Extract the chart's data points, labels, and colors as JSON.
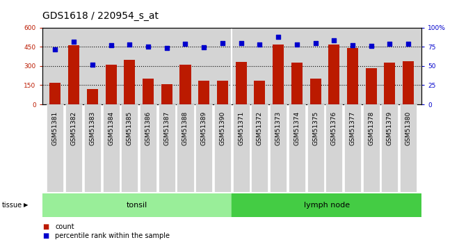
{
  "title": "GDS1618 / 220954_s_at",
  "samples": [
    "GSM51381",
    "GSM51382",
    "GSM51383",
    "GSM51384",
    "GSM51385",
    "GSM51386",
    "GSM51387",
    "GSM51388",
    "GSM51389",
    "GSM51390",
    "GSM51371",
    "GSM51372",
    "GSM51373",
    "GSM51374",
    "GSM51375",
    "GSM51376",
    "GSM51377",
    "GSM51378",
    "GSM51379",
    "GSM51380"
  ],
  "counts": [
    170,
    460,
    120,
    310,
    350,
    200,
    160,
    310,
    185,
    185,
    330,
    185,
    470,
    325,
    200,
    470,
    440,
    285,
    325,
    335
  ],
  "percentiles": [
    72,
    82,
    52,
    77,
    78,
    75,
    73,
    79,
    74,
    80,
    80,
    78,
    88,
    78,
    80,
    83,
    77,
    76,
    79,
    79
  ],
  "tonsil_count": 10,
  "lymph_count": 10,
  "tissue_label": "tissue",
  "group1_label": "tonsil",
  "group2_label": "lymph node",
  "count_label": "count",
  "percentile_label": "percentile rank within the sample",
  "ylim_left": [
    0,
    600
  ],
  "ylim_right": [
    0,
    100
  ],
  "yticks_left": [
    0,
    150,
    300,
    450,
    600
  ],
  "yticks_right": [
    0,
    25,
    50,
    75,
    100
  ],
  "bar_color": "#bb1a00",
  "dot_color": "#0000cc",
  "bg_color_plot": "#d4d4d4",
  "bg_color_xtick": "#d4d4d4",
  "bg_color_tonsil": "#99ee99",
  "bg_color_lymph": "#44cc44",
  "title_fontsize": 10,
  "tick_fontsize": 6.5,
  "label_fontsize": 7.5
}
